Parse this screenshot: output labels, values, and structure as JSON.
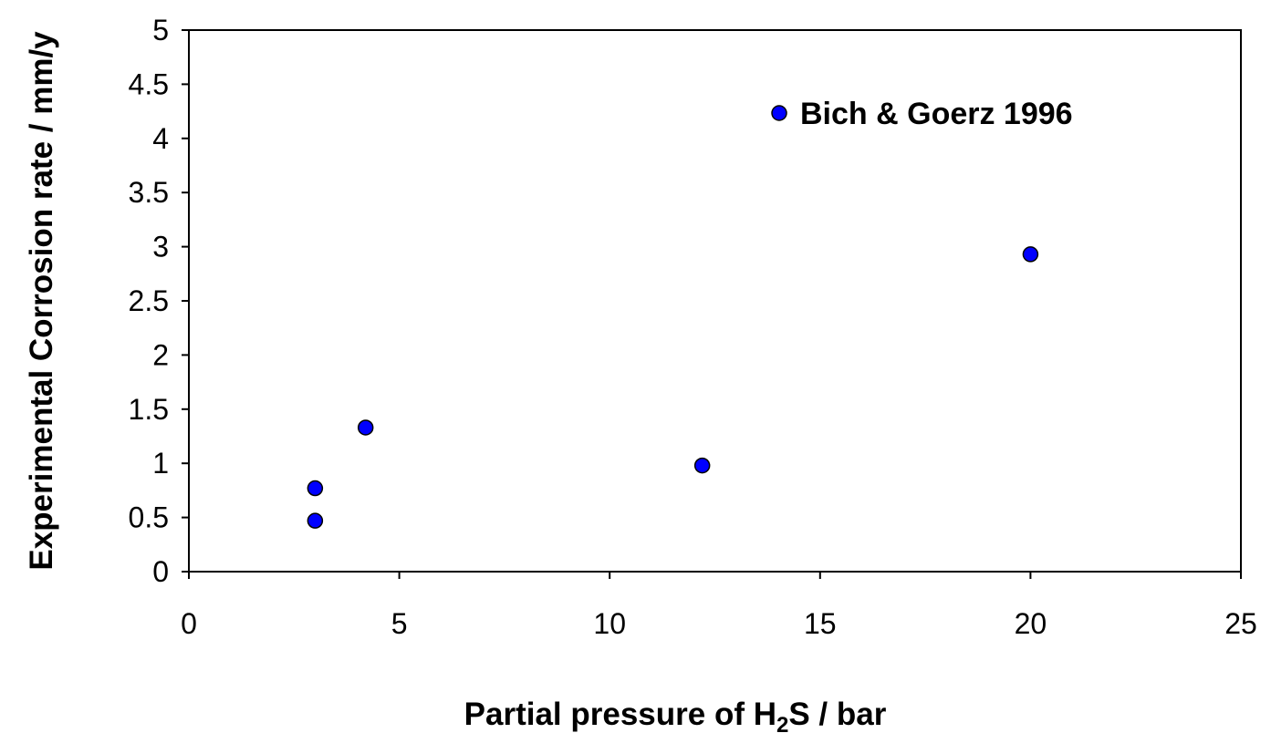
{
  "chart_data": {
    "type": "scatter",
    "xlabel": {
      "main": "Partial pressure of H",
      "sub": "2",
      "rest": "S / bar"
    },
    "ylabel": "Experimental Corrosion rate / mm/y",
    "xlim": [
      0,
      25
    ],
    "ylim": [
      0,
      5
    ],
    "xticks": [
      "0",
      "5",
      "10",
      "15",
      "20",
      "25"
    ],
    "yticks": [
      "0",
      "0.5",
      "1",
      "1.5",
      "2",
      "2.5",
      "3",
      "3.5",
      "4",
      "4.5",
      "5"
    ],
    "grid": false,
    "legend_position": "top-right",
    "series": [
      {
        "name": "Bich & Goerz 1996",
        "color": "#0000ff",
        "points": [
          {
            "x": 3.0,
            "y": 0.77
          },
          {
            "x": 3.0,
            "y": 0.47
          },
          {
            "x": 4.2,
            "y": 1.33
          },
          {
            "x": 12.2,
            "y": 0.98
          },
          {
            "x": 20.0,
            "y": 2.93
          }
        ]
      }
    ]
  }
}
